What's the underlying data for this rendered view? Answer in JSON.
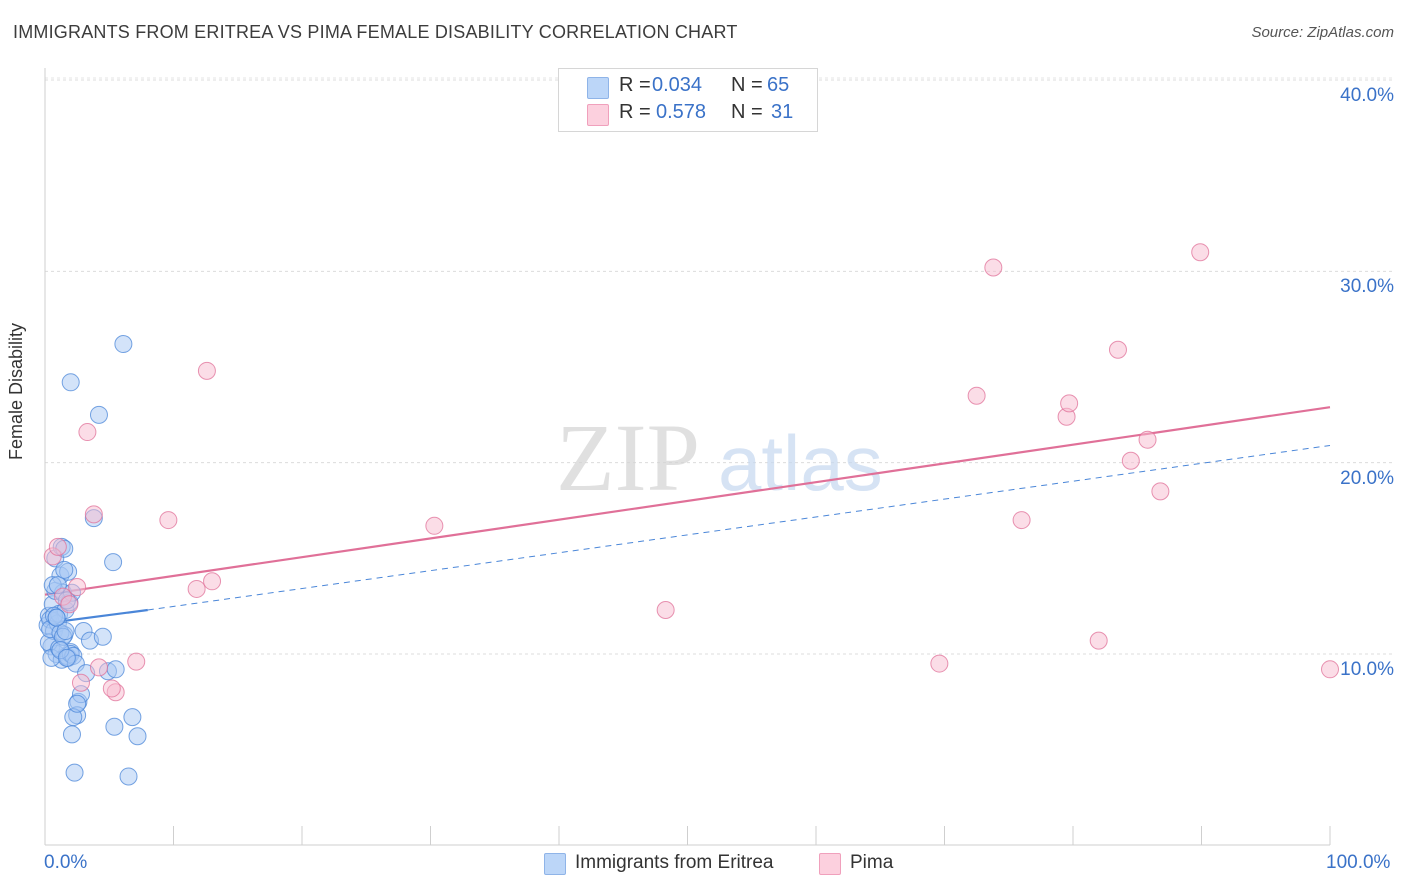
{
  "title": "IMMIGRANTS FROM ERITREA VS PIMA FEMALE DISABILITY CORRELATION CHART",
  "source": "Source: ZipAtlas.com",
  "watermark": {
    "zip": "ZIP",
    "atlas": "atlas"
  },
  "legend": {
    "rows": [
      {
        "r_label": "R =",
        "r_value": "0.034",
        "n_label": "N =",
        "n_value": "65",
        "color": "#a8c8f4"
      },
      {
        "r_label": "R =",
        "r_value": "0.578",
        "n_label": "N =",
        "n_value": "31",
        "color": "#f8bcd0"
      }
    ]
  },
  "bottom_legend": [
    {
      "label": "Immigrants from Eritrea",
      "color": "#a8c8f4"
    },
    {
      "label": "Pima",
      "color": "#f8bcd0"
    }
  ],
  "axes": {
    "y_title": "Female Disability",
    "y_ticks": [
      "10.0%",
      "20.0%",
      "30.0%",
      "40.0%"
    ],
    "x_min_label": "0.0%",
    "x_max_label": "100.0%"
  },
  "chart_data": {
    "type": "scatter",
    "title": "IMMIGRANTS FROM ERITREA VS PIMA FEMALE DISABILITY CORRELATION CHART",
    "xlabel": "",
    "ylabel": "Female Disability",
    "xlim": [
      0,
      100
    ],
    "ylim": [
      0,
      43
    ],
    "grid": true,
    "legend_position": "top-center",
    "series": [
      {
        "name": "Immigrants from Eritrea",
        "color": "#4a86d8",
        "fill": "#a8c8f4",
        "x": [
          0.2,
          0.3,
          0.4,
          0.5,
          0.6,
          0.7,
          0.8,
          0.9,
          1.0,
          1.1,
          1.2,
          1.3,
          1.4,
          1.5,
          1.6,
          1.7,
          1.8,
          1.9,
          2.0,
          2.1,
          0.3,
          0.4,
          0.5,
          0.6,
          0.7,
          0.8,
          0.9,
          1.0,
          1.1,
          1.2,
          1.3,
          1.4,
          1.5,
          1.6,
          1.7,
          1.8,
          2.0,
          2.2,
          2.4,
          2.6,
          2.8,
          3.0,
          3.2,
          3.5,
          3.8,
          4.2,
          4.5,
          4.9,
          5.3,
          5.5,
          5.4,
          6.1,
          6.5,
          6.8,
          7.2,
          2.0,
          2.3,
          2.5,
          2.2,
          2.1,
          2.5,
          0.9,
          1.2,
          1.5,
          1.7
        ],
        "y": [
          11.5,
          12.0,
          11.8,
          10.4,
          12.6,
          11.2,
          13.3,
          10.0,
          11.6,
          12.1,
          14.1,
          9.7,
          13.2,
          11.0,
          12.3,
          9.9,
          14.3,
          12.7,
          10.1,
          13.2,
          10.6,
          11.3,
          9.8,
          13.6,
          12.0,
          15.0,
          11.9,
          13.6,
          10.3,
          11.1,
          15.6,
          10.9,
          14.4,
          11.2,
          12.8,
          9.8,
          10.0,
          9.9,
          9.5,
          7.5,
          7.9,
          11.2,
          9.0,
          10.7,
          17.1,
          22.5,
          10.9,
          9.1,
          14.8,
          9.2,
          6.2,
          26.2,
          3.6,
          6.7,
          5.7,
          24.2,
          3.8,
          6.8,
          6.7,
          5.8,
          7.4,
          11.9,
          10.2,
          15.5,
          9.8
        ]
      },
      {
        "name": "Pima",
        "color": "#e07098",
        "fill": "#f8bcd0",
        "x": [
          0.6,
          1.0,
          1.4,
          1.9,
          2.5,
          2.8,
          3.3,
          3.8,
          4.2,
          5.5,
          7.1,
          9.6,
          11.8,
          12.6,
          13.0,
          30.3,
          48.3,
          69.6,
          72.5,
          73.8,
          76.0,
          79.5,
          79.7,
          82.0,
          83.5,
          84.5,
          85.8,
          86.8,
          89.9,
          101.0,
          5.2
        ],
        "y": [
          15.1,
          15.6,
          13.0,
          12.6,
          13.5,
          8.5,
          21.6,
          17.3,
          9.3,
          8.0,
          9.6,
          17.0,
          13.4,
          24.8,
          13.8,
          16.7,
          12.3,
          9.5,
          23.5,
          30.2,
          17.0,
          22.4,
          23.1,
          10.7,
          25.9,
          20.1,
          21.2,
          18.5,
          31.0,
          9.2,
          8.2
        ]
      }
    ],
    "trend_lines": [
      {
        "series": "Pima",
        "from": [
          0,
          13.1
        ],
        "to": [
          100,
          22.9
        ],
        "style": "solid"
      },
      {
        "series": "Immigrants from Eritrea",
        "from": [
          0,
          11.6
        ],
        "to": [
          8,
          12.3
        ],
        "style": "solid"
      },
      {
        "series": "Immigrants from Eritrea",
        "from": [
          8,
          12.3
        ],
        "to": [
          100,
          20.9
        ],
        "style": "dashed"
      }
    ]
  }
}
